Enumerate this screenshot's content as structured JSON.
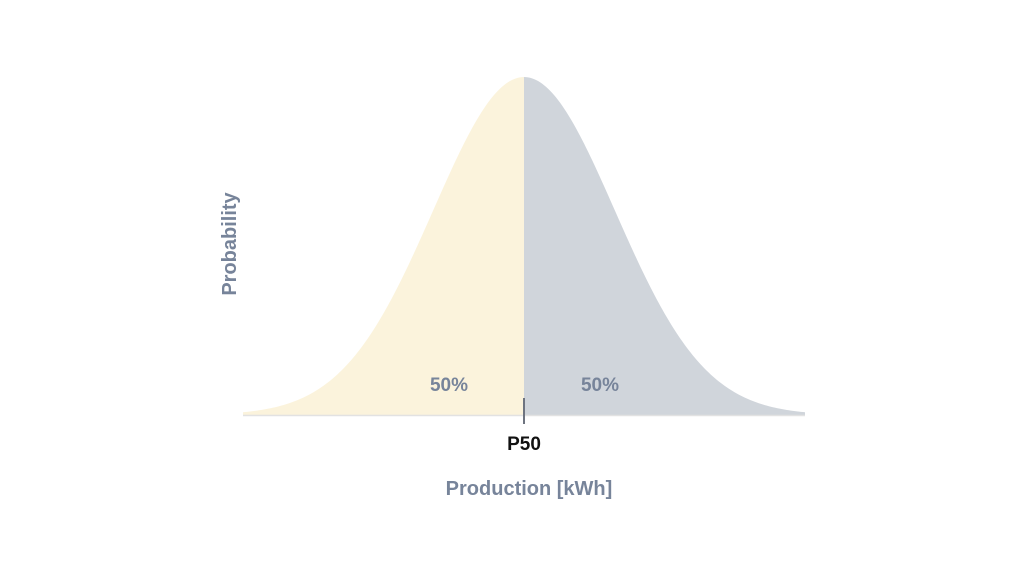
{
  "chart_data": {
    "type": "area",
    "distribution": "normal",
    "xlabel": "Production [kWh]",
    "ylabel": "Probability",
    "marker": {
      "label": "P50",
      "at": 0
    },
    "x_range_sd": [
      -3.1,
      3.1
    ],
    "series": [
      {
        "region": "below-p50",
        "share_label": "50%",
        "color": "#FBF3DC"
      },
      {
        "region": "above-p50",
        "share_label": "50%",
        "color": "#D0D5DB"
      }
    ],
    "grid": false,
    "legend": "none"
  },
  "colors": {
    "text_muted": "#77849A",
    "text_dark": "#111111",
    "baseline": "#E2E2E2",
    "marker_tick": "#6E7480"
  }
}
